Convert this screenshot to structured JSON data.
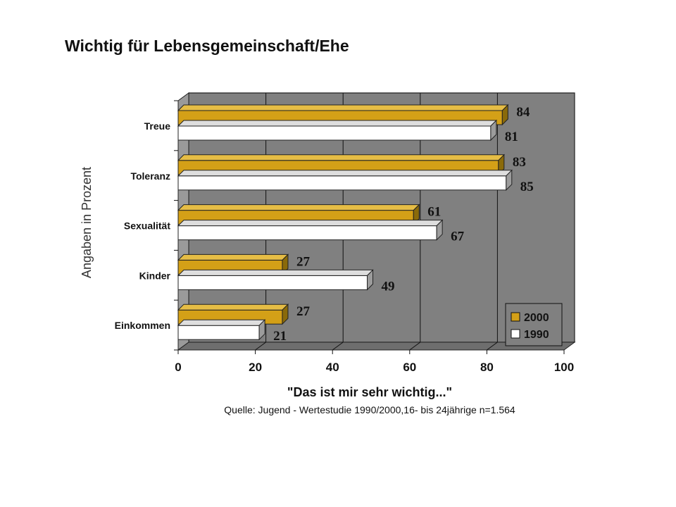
{
  "title": "Wichtig für Lebensgemeinschaft/Ehe",
  "chart_data": {
    "type": "bar",
    "orientation": "horizontal",
    "categories": [
      "Treue",
      "Toleranz",
      "Sexualität",
      "Kinder",
      "Einkommen"
    ],
    "series": [
      {
        "name": "2000",
        "values": [
          84,
          83,
          61,
          27,
          27
        ],
        "color": "#d4a017"
      },
      {
        "name": "1990",
        "values": [
          81,
          85,
          67,
          49,
          21
        ],
        "color": "#ffffff"
      }
    ],
    "xlim": [
      0,
      100
    ],
    "xticks": [
      "0",
      "20",
      "40",
      "60",
      "80",
      "100"
    ],
    "ylabel": "Angaben in Prozent",
    "xlabel": "\"Das ist mir sehr wichtig...\"",
    "source": "Quelle: Jugend - Wertestudie 1990/2000,16- bis 24jährige n=1.564",
    "grid": true,
    "legend_position": "bottom-right",
    "plot_background": "#808080"
  }
}
